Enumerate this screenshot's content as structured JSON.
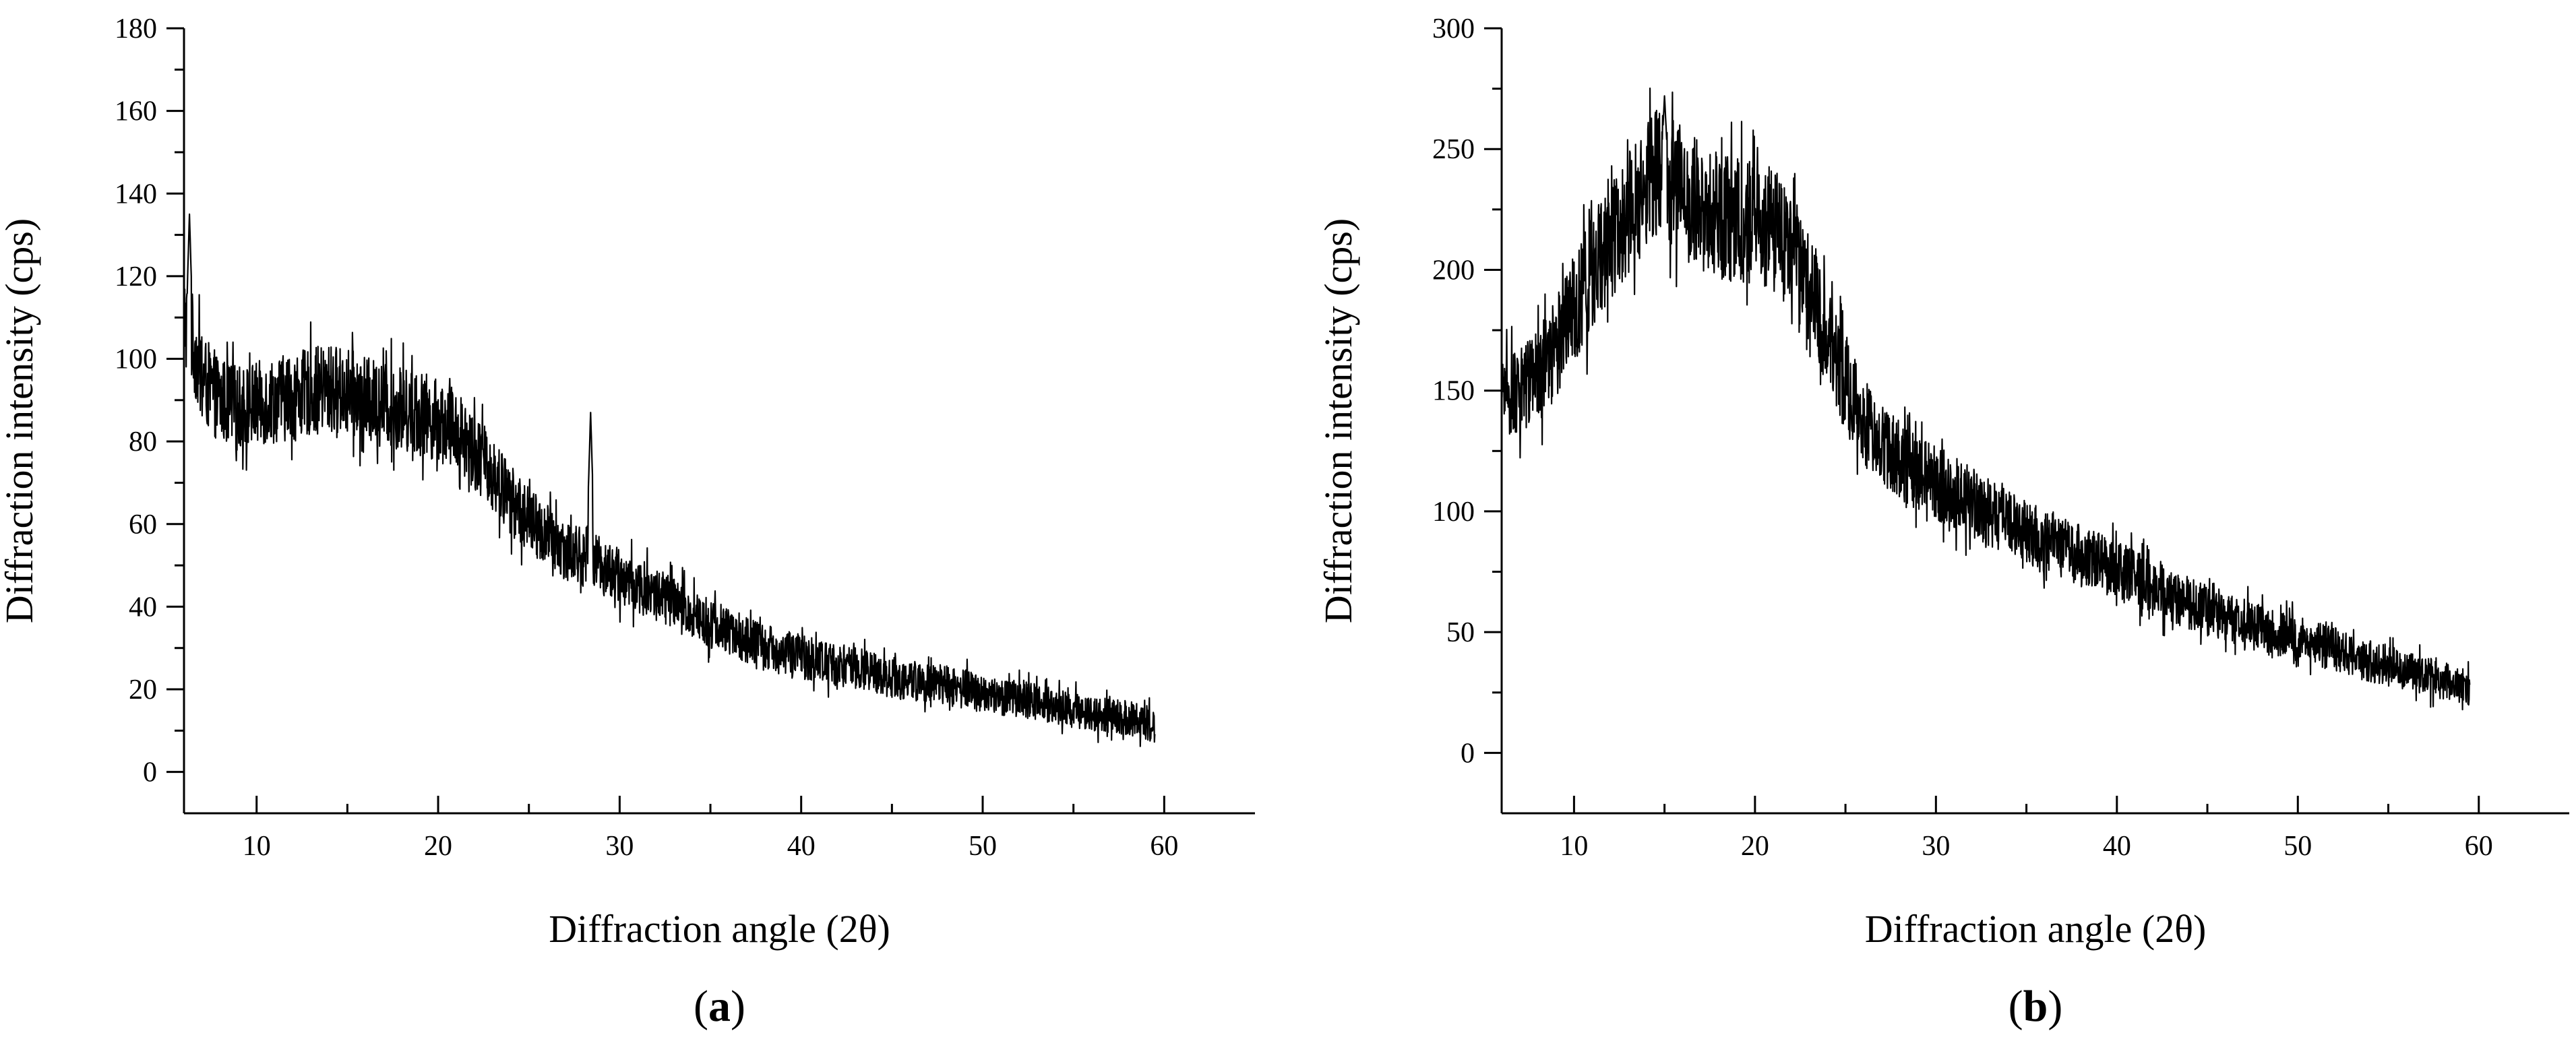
{
  "chart_data": [
    {
      "type": "line",
      "panel_label": "a",
      "xlabel": "Diffraction angle (2θ)",
      "ylabel": "Diffraction intensity (cps)",
      "xlim": [
        6,
        65
      ],
      "ylim": [
        -10,
        180
      ],
      "xticks": [
        10,
        20,
        30,
        40,
        50,
        60
      ],
      "yticks": [
        0,
        20,
        40,
        60,
        80,
        100,
        120,
        140,
        160,
        180
      ],
      "grid": false,
      "series": [
        {
          "x": [
            6,
            6.5,
            7,
            8,
            9,
            10,
            11,
            12,
            13,
            14,
            15,
            16,
            17,
            18,
            19,
            20,
            21,
            22,
            23,
            24,
            25,
            26,
            27,
            28,
            28.5,
            29,
            30,
            31,
            32,
            33,
            34,
            35,
            36,
            37,
            38,
            39,
            40,
            41,
            42,
            43,
            44,
            45,
            46,
            47,
            48,
            49,
            50,
            51,
            52,
            53,
            54,
            55,
            56,
            57,
            58,
            59,
            59.5
          ],
          "y": [
            110,
            104,
            95,
            90,
            88,
            89,
            90,
            91,
            92,
            93,
            92,
            90,
            89,
            88,
            87,
            85,
            83,
            78,
            72,
            66,
            61,
            57,
            54,
            52,
            53,
            50,
            47,
            45,
            43,
            41,
            38,
            36,
            34,
            32,
            30,
            29,
            28,
            27,
            26,
            25,
            24,
            23,
            22,
            22,
            21,
            20,
            19,
            18,
            18,
            17,
            16,
            15,
            14,
            14,
            13,
            12,
            11
          ],
          "noise": 9,
          "peaks": [
            {
              "x": 28.4,
              "y": 87
            },
            {
              "x": 6.3,
              "y": 135
            }
          ]
        }
      ]
    },
    {
      "type": "line",
      "panel_label": "b",
      "xlabel": "Diffraction angle (2θ)",
      "ylabel": "Diffraction intensity (cps)",
      "xlim": [
        6,
        65
      ],
      "ylim": [
        -25,
        300
      ],
      "xticks": [
        10,
        20,
        30,
        40,
        50,
        60
      ],
      "yticks": [
        0,
        50,
        100,
        150,
        200,
        250,
        300
      ],
      "grid": false,
      "series": [
        {
          "x": [
            6,
            7,
            8,
            9,
            10,
            11,
            12,
            13,
            14,
            15,
            16,
            17,
            18,
            19,
            20,
            21,
            22,
            23,
            24,
            25,
            26,
            27,
            28,
            29,
            30,
            31,
            32,
            33,
            34,
            35,
            36,
            37,
            38,
            39,
            40,
            41,
            42,
            43,
            44,
            45,
            46,
            47,
            48,
            49,
            50,
            51,
            52,
            53,
            54,
            55,
            56,
            57,
            58,
            59,
            59.5
          ],
          "y": [
            145,
            148,
            155,
            168,
            183,
            198,
            212,
            225,
            236,
            240,
            232,
            226,
            222,
            221,
            220,
            217,
            208,
            192,
            172,
            152,
            137,
            128,
            121,
            116,
            112,
            108,
            104,
            100,
            96,
            92,
            88,
            85,
            82,
            79,
            76,
            72,
            68,
            65,
            62,
            59,
            57,
            54,
            51,
            49,
            47,
            45,
            43,
            40,
            38,
            36,
            34,
            32,
            30,
            28,
            27
          ],
          "noise": 14,
          "peaks": [
            {
              "x": 15.0,
              "y": 272
            }
          ]
        }
      ]
    }
  ]
}
